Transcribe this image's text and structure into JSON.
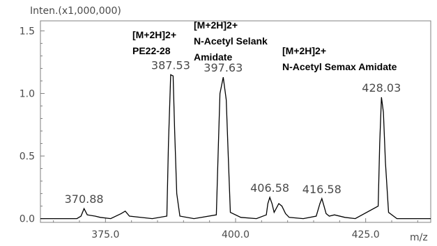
{
  "chart_data": {
    "type": "line",
    "ylabel": "Inten.(x1,000,000)",
    "xlabel": "m/z",
    "xlim": [
      362.5,
      437.5
    ],
    "ylim": [
      -0.03,
      1.58
    ],
    "x_ticks": [
      375.0,
      400.0,
      425.0
    ],
    "x_tick_labels": [
      "375.0",
      "400.0",
      "425.0"
    ],
    "y_ticks": [
      0.0,
      0.5,
      1.0,
      1.5
    ],
    "y_tick_labels": [
      "0.0",
      "0.5",
      "1.0",
      "1.5"
    ],
    "series": [
      {
        "x": [
          362.5,
          366.0,
          369.5,
          370.3,
          370.88,
          371.5,
          373.0,
          374.0,
          376.0,
          378.0,
          378.8,
          379.6,
          384.0,
          386.8,
          387.1,
          387.53,
          388.0,
          388.3,
          388.7,
          389.3,
          392.0,
          396.3,
          396.7,
          397.0,
          397.63,
          398.2,
          398.6,
          399.0,
          401.0,
          404.0,
          405.9,
          406.2,
          406.58,
          407.0,
          407.4,
          407.8,
          408.3,
          408.9,
          409.6,
          410.3,
          413.0,
          415.5,
          416.2,
          416.58,
          417.0,
          417.4,
          418.0,
          419.0,
          421.0,
          423.0,
          427.4,
          427.7,
          428.03,
          428.4,
          428.8,
          429.4,
          431.0,
          437.5
        ],
        "y": [
          0.0,
          0.0,
          0.0,
          0.02,
          0.08,
          0.03,
          0.02,
          0.01,
          0.0,
          0.04,
          0.06,
          0.02,
          0.0,
          0.02,
          0.6,
          1.15,
          1.14,
          0.7,
          0.2,
          0.02,
          0.0,
          0.03,
          0.6,
          1.0,
          1.13,
          0.95,
          0.5,
          0.05,
          0.01,
          0.0,
          0.03,
          0.12,
          0.17,
          0.12,
          0.05,
          0.08,
          0.12,
          0.1,
          0.04,
          0.01,
          0.0,
          0.02,
          0.12,
          0.16,
          0.1,
          0.04,
          0.02,
          0.03,
          0.01,
          0.0,
          0.1,
          0.6,
          0.97,
          0.85,
          0.45,
          0.05,
          0.0,
          0.0
        ]
      }
    ],
    "peak_labels": [
      {
        "x": 370.88,
        "text": "370.88"
      },
      {
        "x": 387.53,
        "text": "387.53"
      },
      {
        "x": 397.63,
        "text": "397.63"
      },
      {
        "x": 406.58,
        "text": "406.58"
      },
      {
        "x": 416.58,
        "text": "416.58"
      },
      {
        "x": 428.03,
        "text": "428.03"
      }
    ],
    "annotations": [
      {
        "lines": [
          "[M+2H]2+",
          "PE22-28"
        ]
      },
      {
        "lines": [
          "[M+2H]2+",
          "N-Acetyl Selank",
          "Amidate"
        ]
      },
      {
        "lines": [
          "[M+2H]2+",
          "N-Acetyl Semax Amidate"
        ]
      }
    ]
  }
}
